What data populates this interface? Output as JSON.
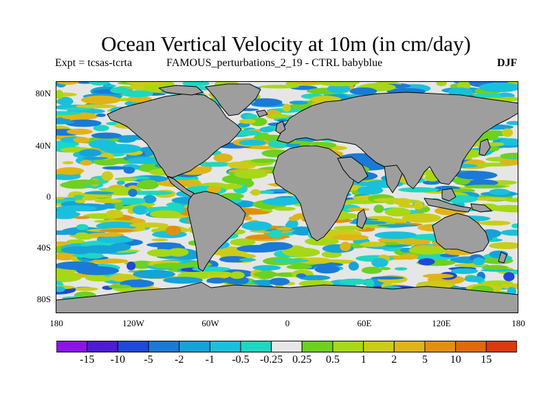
{
  "title": "Ocean Vertical Velocity at 10m (in cm/day)",
  "subtitle_left": "Expt = tcsas-tcrta",
  "subtitle_mid": "FAMOUS_perturbations_2_19 - CTRL babyblue",
  "season": "DJF",
  "lat_labels": [
    "80N",
    "40N",
    "0",
    "40S",
    "80S"
  ],
  "lon_labels": [
    "180",
    "120W",
    "60W",
    "0",
    "60E",
    "120E",
    "180"
  ],
  "colorbar": {
    "colors": [
      "#8b14e6",
      "#4e1ad2",
      "#1f48d8",
      "#1a7ad6",
      "#15a2d8",
      "#19c0dc",
      "#1fd6c2",
      "#e6e6e6",
      "#6ed01f",
      "#a6d816",
      "#cccc18",
      "#e0b416",
      "#e0900e",
      "#de6a0c",
      "#dc3a0a"
    ],
    "labels": [
      "-15",
      "-10",
      "-5",
      "-2",
      "-1",
      "-0.5",
      "-0.25",
      "0.25",
      "0.5",
      "1",
      "2",
      "5",
      "10",
      "15"
    ]
  },
  "colors": {
    "land": "#9e9e9e",
    "no_data": "#e6e6e6"
  }
}
